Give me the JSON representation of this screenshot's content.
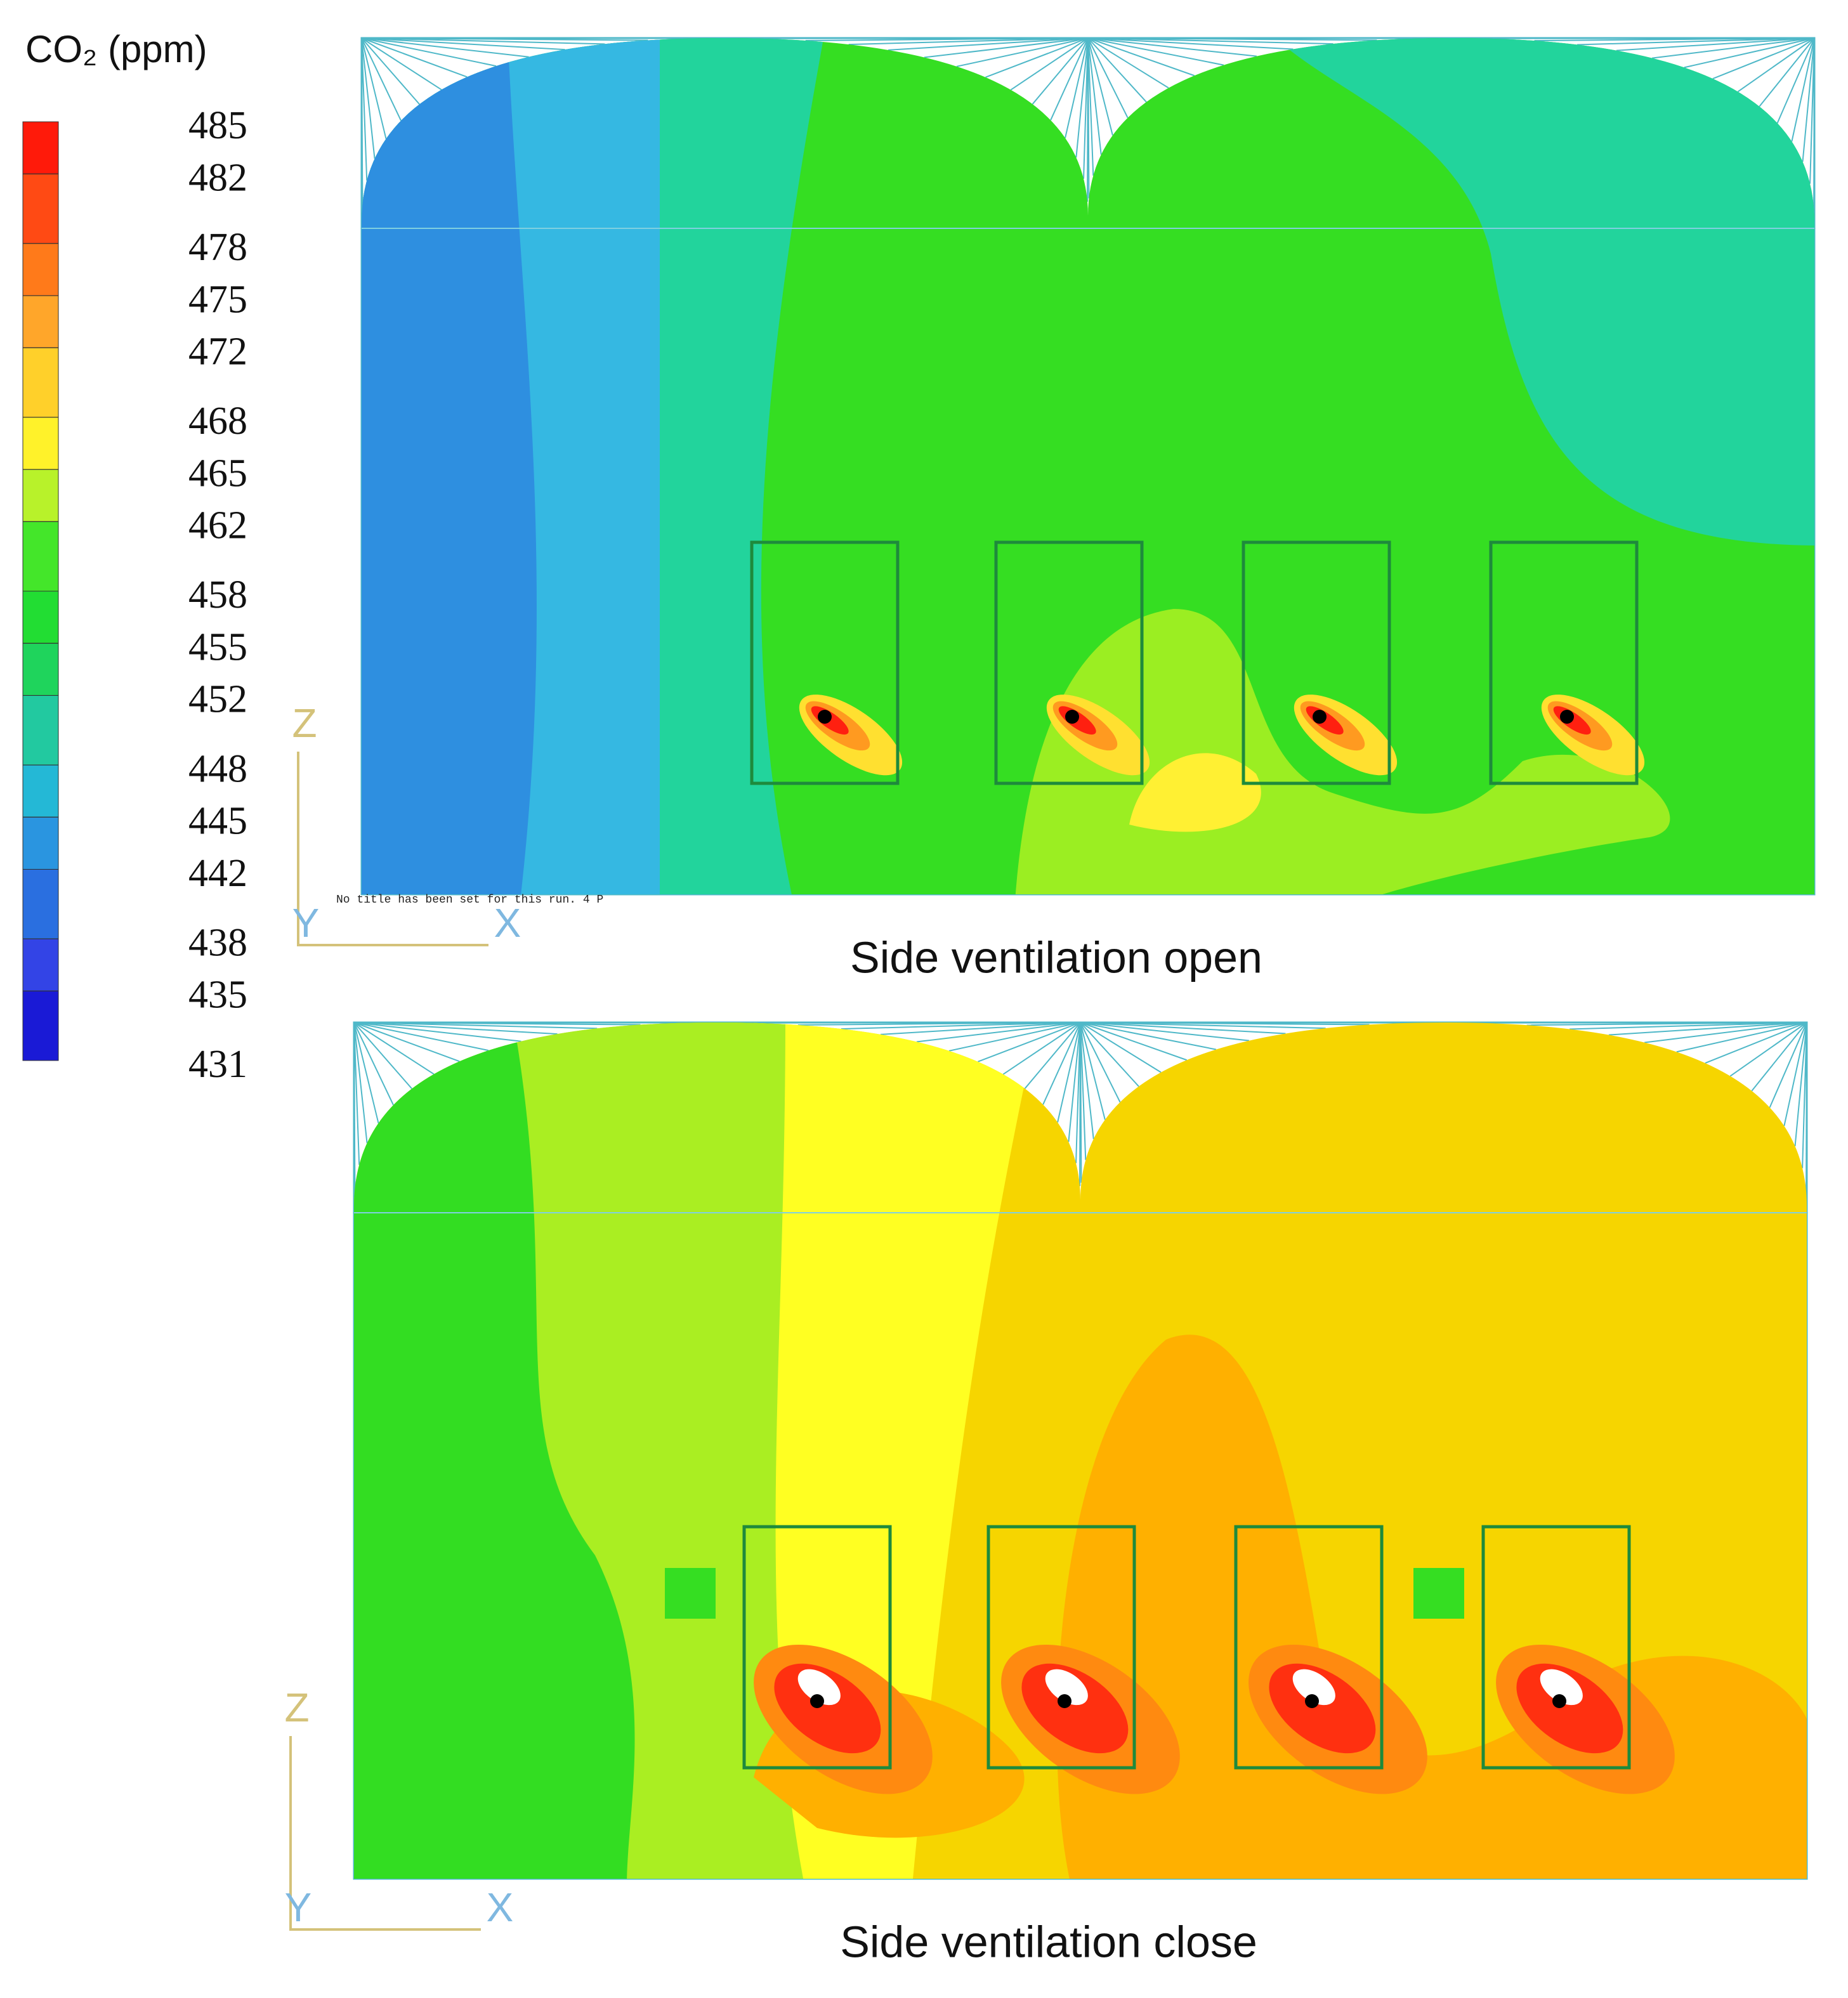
{
  "colorbar": {
    "title": "CO₂ (ppm)",
    "lim": [
      431,
      485
    ],
    "ticks": [
      485,
      482,
      478,
      475,
      472,
      468,
      465,
      462,
      458,
      455,
      452,
      448,
      445,
      442,
      438,
      435,
      431
    ],
    "colors": [
      "#ff1a0a",
      "#ff4a14",
      "#ff7a1a",
      "#ffa62a",
      "#ffd02a",
      "#fff22a",
      "#b8f22a",
      "#44e62a",
      "#22dd33",
      "#1fd45c",
      "#22c9a0",
      "#24b8d6",
      "#2a95e0",
      "#2a6fe0",
      "#3344e6",
      "#1a1ad6"
    ]
  },
  "panels": [
    {
      "caption": "Side ventilation open",
      "note": "No title has been set for this run.  4 P",
      "axes": [
        "Z",
        "Y",
        "X"
      ]
    },
    {
      "caption": "Side ventilation close",
      "axes": [
        "Z",
        "Y",
        "X"
      ]
    }
  ]
}
